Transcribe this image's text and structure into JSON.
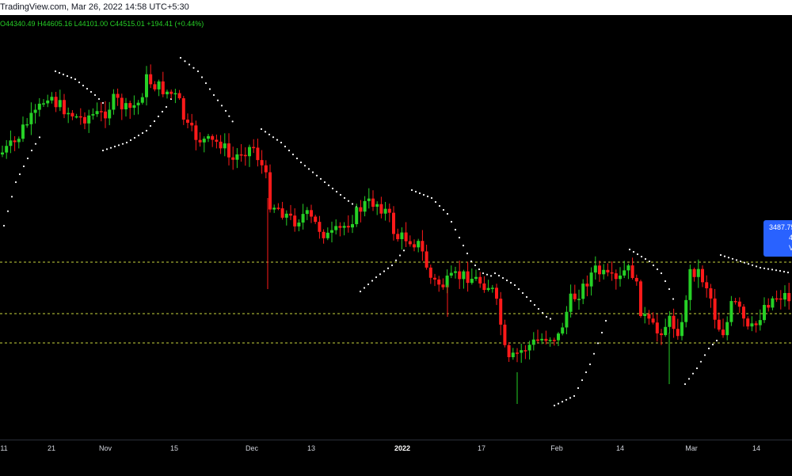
{
  "header": {
    "source_line": "TradingView.com, Mar 26, 2022 14:58 UTC+5:30"
  },
  "ohlc": {
    "open": "O44340.49",
    "high": "H44605.16",
    "low": "L44101.00",
    "close": "C44515.01",
    "change": "+194.41 (+0.44%)"
  },
  "price_tag": {
    "value": "3487.75",
    "line2": "4",
    "line3": "V"
  },
  "colors": {
    "up": "#26d026",
    "down": "#ff1a1a",
    "sar": "#ffffff",
    "level": "#c8d43c",
    "tag": "#2962ff"
  },
  "chart_data": {
    "type": "candlestick",
    "indicators": [
      "parabolic-sar"
    ],
    "x_tick_labels": [
      "11",
      "21",
      "Nov",
      "15",
      "Dec",
      "13",
      "2022",
      "17",
      "Feb",
      "14",
      "Mar",
      "14"
    ],
    "horizontal_levels": [
      "dashed",
      "dashed",
      "dashed"
    ],
    "grid": false
  }
}
